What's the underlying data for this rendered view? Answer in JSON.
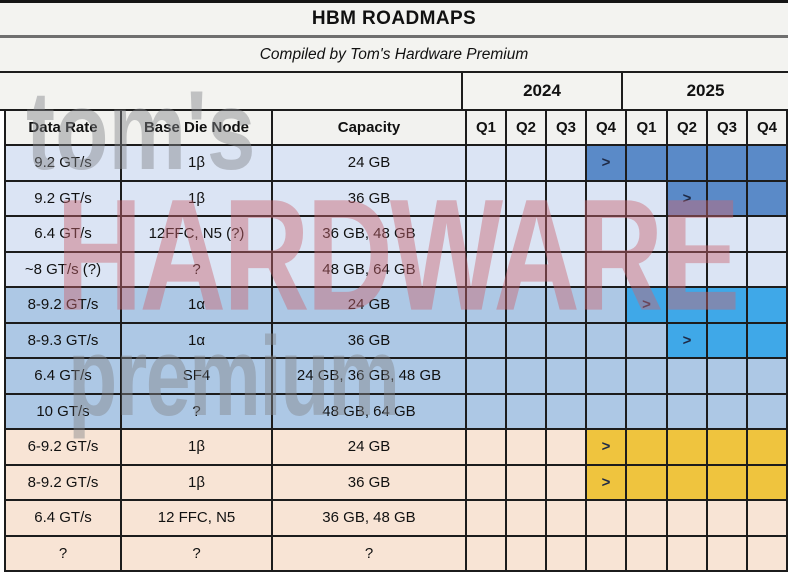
{
  "watermark": {
    "line1": "tom's",
    "line2": "HARDWARE",
    "line3": "premium",
    "gray_color": "rgba(130,132,138,0.45)",
    "red_color": "rgba(201,101,112,0.45)"
  },
  "chart_data": {
    "type": "table",
    "title": "HBM ROADMAPS",
    "subtitle": "Compiled by Tom's Hardware Premium",
    "year_groups": [
      "2024",
      "2025"
    ],
    "quarter_headers": [
      "Q1",
      "Q2",
      "Q3",
      "Q4",
      "Q1",
      "Q2",
      "Q3",
      "Q4"
    ],
    "column_headers": {
      "data_rate": "Data Rate",
      "base_die_node": "Base Die Node",
      "capacity": "Capacity"
    },
    "marker_symbol": ">",
    "quarter_index_map": [
      "2024-Q1",
      "2024-Q2",
      "2024-Q3",
      "2024-Q4",
      "2025-Q1",
      "2025-Q2",
      "2025-Q3",
      "2025-Q4"
    ],
    "row_groups": {
      "g1": {
        "row_bg": "#dbe4f4",
        "bar_bg": "#5a8ac8"
      },
      "g2": {
        "row_bg": "#adc8e5",
        "bar_bg": "#3fa8e8"
      },
      "g3": {
        "row_bg": "#f8e4d5",
        "bar_bg": "#efc43e"
      }
    },
    "rows": [
      {
        "data_rate": "9.2 GT/s",
        "base_die_node": "1β",
        "capacity": "24 GB",
        "group": "g1",
        "bar_start_index": 3,
        "marker_index": 3
      },
      {
        "data_rate": "9.2 GT/s",
        "base_die_node": "1β",
        "capacity": "36 GB",
        "group": "g1",
        "bar_start_index": 5,
        "marker_index": 5
      },
      {
        "data_rate": "6.4 GT/s",
        "base_die_node": "12FFC, N5 (?)",
        "capacity": "36 GB, 48 GB",
        "group": "g1",
        "bar_start_index": null,
        "marker_index": null
      },
      {
        "data_rate": "~8 GT/s (?)",
        "base_die_node": "?",
        "capacity": "48 GB, 64 GB",
        "group": "g1",
        "bar_start_index": null,
        "marker_index": null
      },
      {
        "data_rate": "8-9.2 GT/s",
        "base_die_node": "1α",
        "capacity": "24 GB",
        "group": "g2",
        "bar_start_index": 4,
        "marker_index": 4
      },
      {
        "data_rate": "8-9.3 GT/s",
        "base_die_node": "1α",
        "capacity": "36 GB",
        "group": "g2",
        "bar_start_index": 5,
        "marker_index": 5
      },
      {
        "data_rate": "6.4 GT/s",
        "base_die_node": "SF4",
        "capacity": "24 GB, 36 GB, 48 GB",
        "group": "g2",
        "bar_start_index": null,
        "marker_index": null
      },
      {
        "data_rate": "10 GT/s",
        "base_die_node": "?",
        "capacity": "48 GB, 64 GB",
        "group": "g2",
        "bar_start_index": null,
        "marker_index": null
      },
      {
        "data_rate": "6-9.2 GT/s",
        "base_die_node": "1β",
        "capacity": "24 GB",
        "group": "g3",
        "bar_start_index": 3,
        "marker_index": 3
      },
      {
        "data_rate": "8-9.2 GT/s",
        "base_die_node": "1β",
        "capacity": "36 GB",
        "group": "g3",
        "bar_start_index": 3,
        "marker_index": 3
      },
      {
        "data_rate": "6.4 GT/s",
        "base_die_node": "12 FFC, N5",
        "capacity": "36 GB, 48 GB",
        "group": "g3",
        "bar_start_index": null,
        "marker_index": null
      },
      {
        "data_rate": "?",
        "base_die_node": "?",
        "capacity": "?",
        "group": "g3",
        "bar_start_index": null,
        "marker_index": null
      }
    ]
  }
}
